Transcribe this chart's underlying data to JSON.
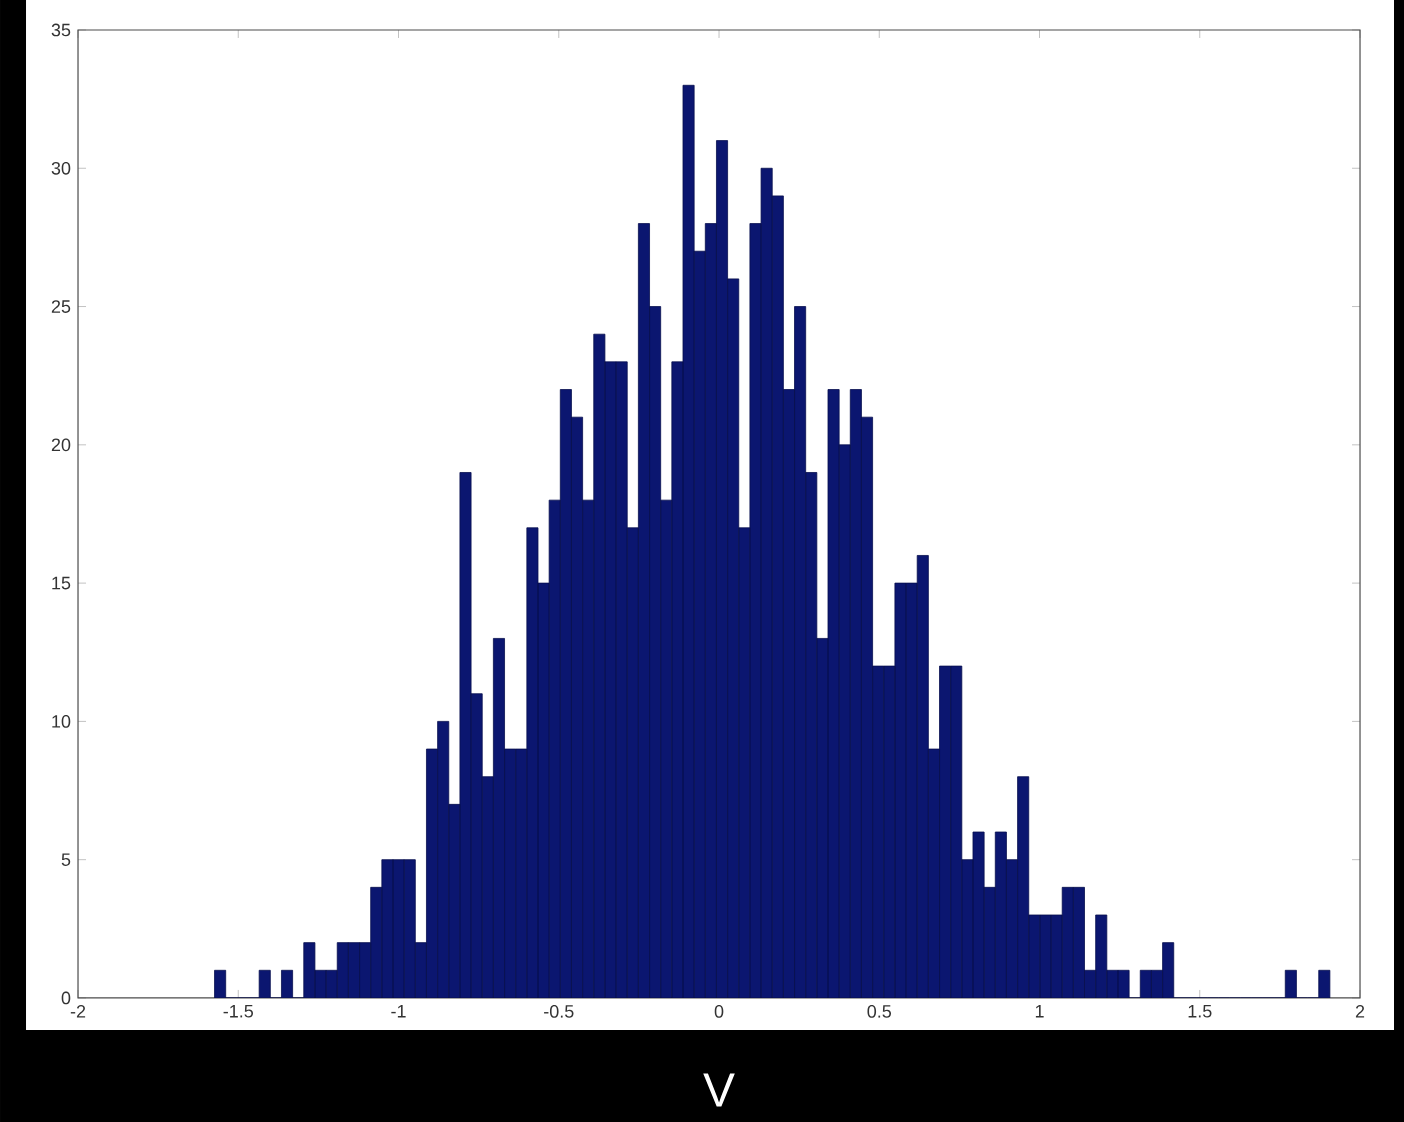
{
  "chart_data": {
    "type": "histogram",
    "xlabel": "V",
    "bins": [
      -1.574,
      -1.5392,
      -1.5044,
      -1.4696,
      -1.4348,
      -1.4,
      -1.3652,
      -1.3304,
      -1.2956,
      -1.2608,
      -1.226,
      -1.1912,
      -1.1564,
      -1.1216,
      -1.0868,
      -1.052,
      -1.0172,
      -0.9824,
      -0.9476,
      -0.9128,
      -0.878,
      -0.8432,
      -0.8084,
      -0.7736,
      -0.7388,
      -0.704,
      -0.6692,
      -0.6344,
      -0.5996,
      -0.5648,
      -0.53,
      -0.4952,
      -0.4604,
      -0.4256,
      -0.3908,
      -0.356,
      -0.3212,
      -0.2864,
      -0.2516,
      -0.2168,
      -0.182,
      -0.1472,
      -0.1124,
      -0.0776,
      -0.0428,
      -0.008,
      0.0268,
      0.0616,
      0.0964,
      0.1312,
      0.166,
      0.2008,
      0.2356,
      0.2704,
      0.3052,
      0.34,
      0.3748,
      0.4096,
      0.4444,
      0.4792,
      0.514,
      0.5488,
      0.5836,
      0.6184,
      0.6532,
      0.688,
      0.7228,
      0.7576,
      0.7924,
      0.8272,
      0.862,
      0.8968,
      0.9316,
      0.9664,
      1.0012,
      1.036,
      1.0708,
      1.1056,
      1.1404,
      1.1752,
      1.21,
      1.2448,
      1.2796,
      1.3144,
      1.3492,
      1.384,
      1.4188,
      1.4536,
      1.4884,
      1.5232,
      1.558,
      1.5928,
      1.6276,
      1.6624,
      1.6972,
      1.732,
      1.7668,
      1.8016,
      1.8364,
      1.8712,
      1.906
    ],
    "values": [
      1,
      0,
      0,
      0,
      1,
      0,
      1,
      0,
      2,
      1,
      1,
      2,
      2,
      2,
      4,
      5,
      5,
      5,
      2,
      9,
      10,
      7,
      19,
      11,
      8,
      13,
      9,
      9,
      17,
      15,
      18,
      22,
      21,
      18,
      24,
      23,
      23,
      17,
      28,
      25,
      18,
      23,
      33,
      27,
      28,
      31,
      26,
      17,
      28,
      30,
      29,
      22,
      25,
      19,
      13,
      22,
      20,
      22,
      21,
      12,
      12,
      15,
      15,
      16,
      9,
      12,
      12,
      5,
      6,
      4,
      6,
      5,
      8,
      3,
      3,
      3,
      4,
      4,
      1,
      3,
      1,
      1,
      0,
      1,
      1,
      2,
      0,
      0,
      0,
      0,
      0,
      0,
      0,
      0,
      0,
      0,
      1,
      0,
      0,
      1
    ],
    "color": "#0b1670",
    "xlim": [
      -2,
      2
    ],
    "ylim": [
      0,
      35
    ],
    "xticks": [
      -2,
      -1.5,
      -1,
      -0.5,
      0,
      0.5,
      1,
      1.5,
      2
    ],
    "yticks": [
      0,
      5,
      10,
      15,
      20,
      25,
      30,
      35
    ]
  }
}
